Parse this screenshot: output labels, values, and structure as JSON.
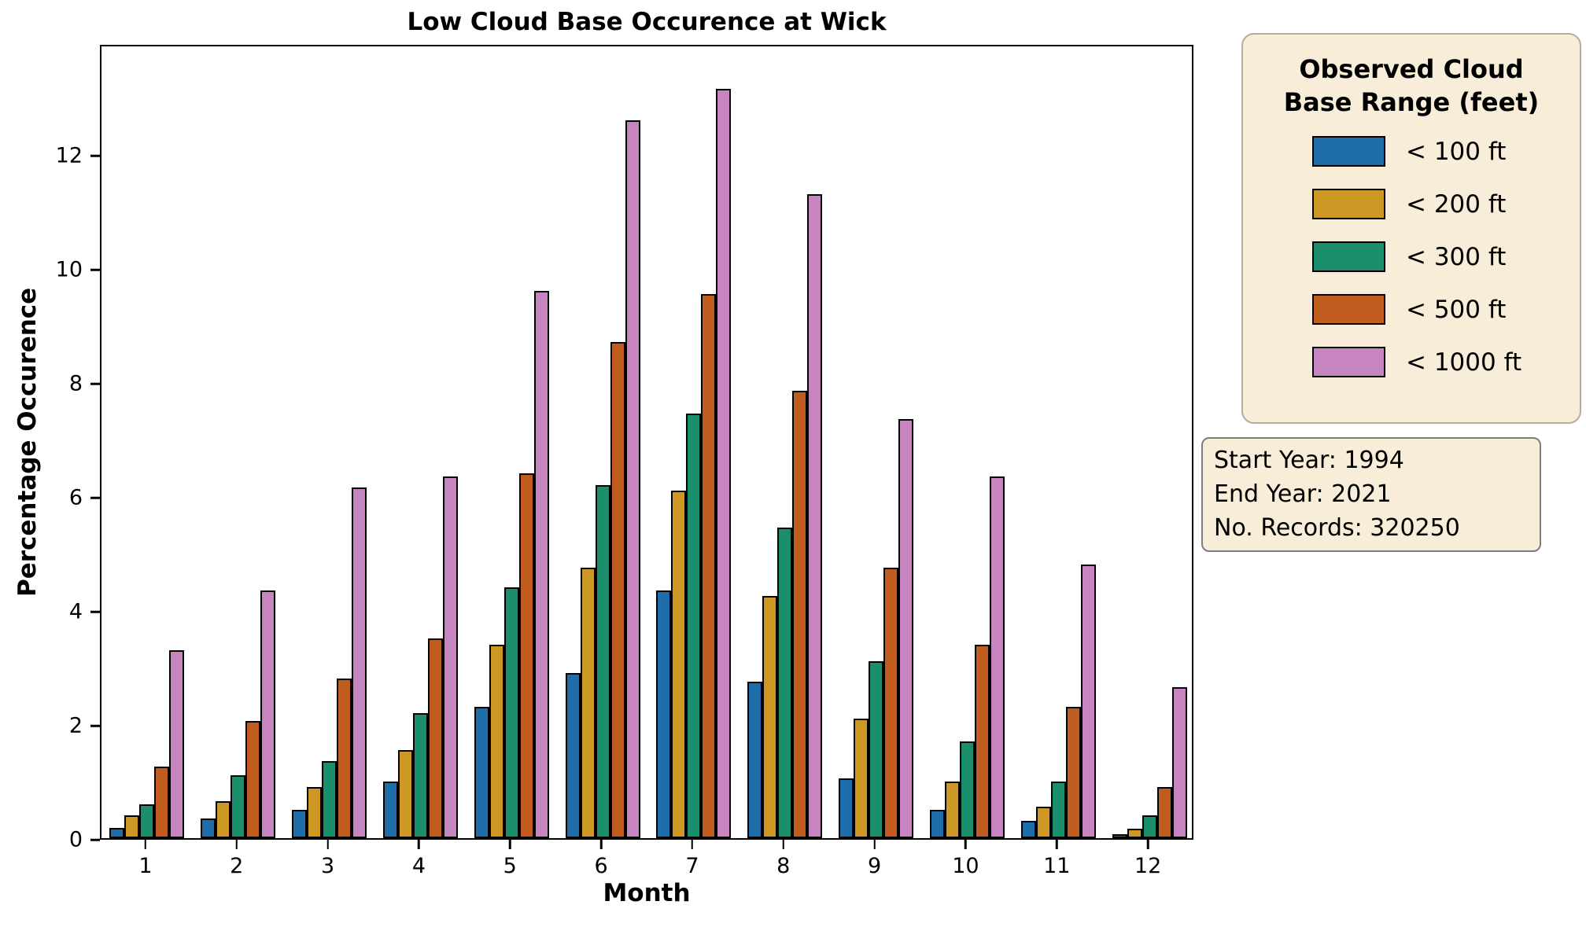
{
  "title": "Low Cloud Base Occurence at Wick",
  "axes": {
    "x_label": "Month",
    "y_label": "Percentage Occurence",
    "y_ticks": [
      0,
      2,
      4,
      6,
      8,
      10,
      12
    ]
  },
  "chart_data": {
    "type": "bar",
    "title": "Low Cloud Base Occurence at Wick",
    "xlabel": "Month",
    "ylabel": "Percentage Occurence",
    "categories": [
      "1",
      "2",
      "3",
      "4",
      "5",
      "6",
      "7",
      "8",
      "9",
      "10",
      "11",
      "12"
    ],
    "series": [
      {
        "name": "< 100 ft",
        "color": "#1f6da9",
        "values": [
          0.18,
          0.35,
          0.5,
          1.0,
          2.3,
          2.9,
          4.35,
          2.75,
          1.05,
          0.5,
          0.3,
          0.07
        ]
      },
      {
        "name": "< 200 ft",
        "color": "#ce9825",
        "values": [
          0.4,
          0.65,
          0.9,
          1.55,
          3.4,
          4.75,
          6.1,
          4.25,
          2.1,
          1.0,
          0.55,
          0.17
        ]
      },
      {
        "name": "< 300 ft",
        "color": "#1b8e6b",
        "values": [
          0.6,
          1.1,
          1.35,
          2.2,
          4.4,
          6.2,
          7.45,
          5.45,
          3.1,
          1.7,
          1.0,
          0.4
        ]
      },
      {
        "name": "< 500 ft",
        "color": "#bf5c1e",
        "values": [
          1.25,
          2.05,
          2.8,
          3.5,
          6.4,
          8.7,
          9.55,
          7.85,
          4.75,
          3.4,
          2.3,
          0.9
        ]
      },
      {
        "name": "< 1000 ft",
        "color": "#c685c1",
        "values": [
          3.3,
          4.35,
          6.15,
          6.35,
          9.6,
          12.6,
          13.15,
          11.3,
          7.35,
          6.35,
          4.8,
          2.65
        ]
      }
    ],
    "ylim": [
      0,
      13.95
    ],
    "grid": false,
    "legend_position": "outside-right"
  },
  "legend": {
    "title_line1": "Observed Cloud",
    "title_line2": "Base Range (feet)",
    "items": [
      {
        "label": "< 100 ft",
        "color": "#1f6da9"
      },
      {
        "label": "< 200 ft",
        "color": "#ce9825"
      },
      {
        "label": "< 300 ft",
        "color": "#1b8e6b"
      },
      {
        "label": "< 500 ft",
        "color": "#bf5c1e"
      },
      {
        "label": "< 1000 ft",
        "color": "#c685c1"
      }
    ]
  },
  "info_box": {
    "lines": [
      "Start Year: 1994",
      "End Year: 2021",
      "No. Records: 320250"
    ]
  }
}
